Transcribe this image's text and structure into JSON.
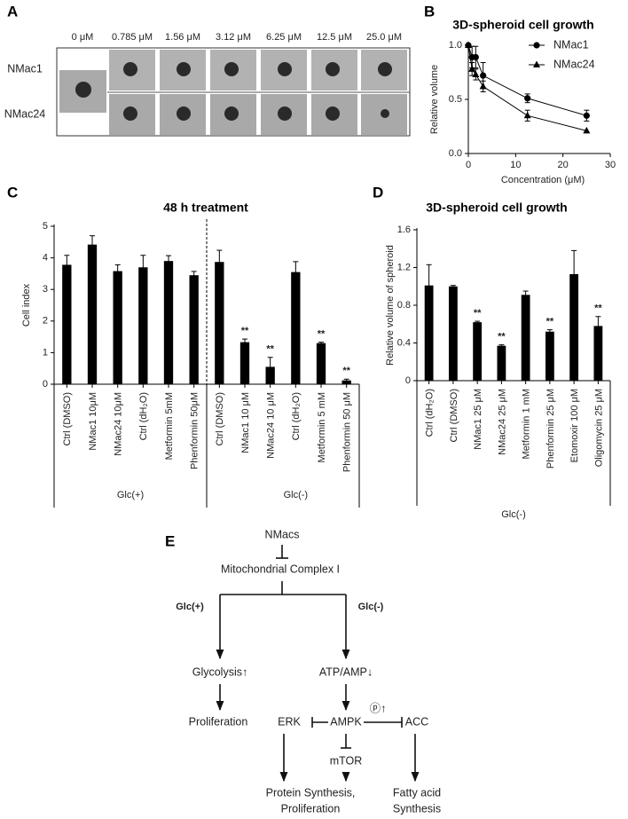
{
  "panel_a": {
    "panel_label": "A",
    "columns": [
      "0 μM",
      "0.785 μM",
      "1.56 μM",
      "3.12 μM",
      "6.25 μM",
      "12.5 μM",
      "25.0 μM"
    ],
    "rows": [
      "NMac1",
      "NMac24"
    ]
  },
  "chart_data": [
    {
      "type": "line",
      "panel_label": "B",
      "title": "3D-spheroid cell growth",
      "x_label": "Concentration (μM)",
      "y_label": "Relative volume",
      "x": [
        0,
        0.785,
        1.56,
        3.12,
        12.5,
        25
      ],
      "series": [
        {
          "name": "NMac1",
          "color": "#000000",
          "marker": "circle",
          "values": [
            1.0,
            0.89,
            0.89,
            0.72,
            0.51,
            0.35
          ],
          "errors": [
            0,
            0.1,
            0.1,
            0.12,
            0.04,
            0.05
          ]
        },
        {
          "name": "NMac24",
          "color": "#000000",
          "marker": "triangle",
          "values": [
            1.0,
            0.78,
            0.73,
            0.62,
            0.35,
            0.21
          ],
          "errors": [
            0,
            0.06,
            0.05,
            0.05,
            0.05,
            0
          ]
        }
      ],
      "xlim": [
        0,
        30
      ],
      "xticks": [
        0,
        10,
        20,
        30
      ],
      "ylim": [
        0,
        1.0
      ],
      "yticks": [
        {
          "value": 0,
          "label": "0.0"
        },
        0.5,
        {
          "value": 1.0,
          "label": "1.0"
        }
      ],
      "legend": "top-right"
    },
    {
      "type": "bar",
      "panel_label": "C",
      "title": "48 h treatment",
      "y_label": "Cell index",
      "categories": [
        "Ctrl (DMSO)",
        "NMac1 10μM",
        "NMac24 10μM",
        "Ctrl (dH₂O)",
        "Metformin 5mM",
        "Phenformin 50μM",
        "Ctrl (DMSO)",
        "NMac1 10 μM",
        "NMac24 10 μM",
        "Ctrl (dH₂O)",
        "Metformin 5 mM",
        "Phenformin 50 μM"
      ],
      "values": [
        3.78,
        4.42,
        3.58,
        3.7,
        3.9,
        3.45,
        3.87,
        1.33,
        0.55,
        3.55,
        1.3,
        0.12
      ],
      "errors": [
        0.3,
        0.28,
        0.2,
        0.38,
        0.17,
        0.12,
        0.37,
        0.1,
        0.3,
        0.33,
        0.03,
        0.04
      ],
      "color": "#000000",
      "annotations": [
        {
          "category": "NMac1 10 μM",
          "text": "**"
        },
        {
          "category": "NMac24 10 μM",
          "text": "**"
        },
        {
          "category": "Metformin 5 mM",
          "text": "**"
        },
        {
          "category": "Phenformin 50 μM",
          "text": "**"
        }
      ],
      "groups": [
        {
          "label": "Glc(+)",
          "from": "NMac1 10μM",
          "to": "Phenformin 50μM"
        },
        {
          "label": "Glc(-)",
          "from": "NMac1 10 μM",
          "to": "Phenformin 50 μM"
        }
      ],
      "ylim": [
        0,
        5
      ],
      "yticks": [
        0,
        1,
        2,
        3,
        4,
        5
      ]
    },
    {
      "type": "bar",
      "panel_label": "D",
      "title": "3D-spheroid cell growth",
      "y_label": "Relative volume of spheroid",
      "categories": [
        "Ctrl (dH₂O)",
        "Ctrl (DMSO)",
        "NMac1 25 μM",
        "NMac24 25 μM",
        "Metformin 1 mM",
        "Phenformin 25 μM",
        "Etomoxir 100 μM",
        "Oligomycin 25 μM"
      ],
      "values": [
        1.01,
        1.0,
        0.62,
        0.37,
        0.91,
        0.52,
        1.13,
        0.58
      ],
      "errors": [
        0.22,
        0.01,
        0.01,
        0.01,
        0.04,
        0.02,
        0.25,
        0.1
      ],
      "color": "#000000",
      "annotations": [
        {
          "category": "NMac1 25 μM",
          "text": "**"
        },
        {
          "category": "NMac24 25 μM",
          "text": "**"
        },
        {
          "category": "Phenformin 25 μM",
          "text": "**"
        },
        {
          "category": "Oligomycin 25 μM",
          "text": "**"
        }
      ],
      "groups": [
        {
          "label": "Glc(-)",
          "from": "Ctrl (dH₂O)",
          "to": "Oligomycin 25 μM"
        }
      ],
      "ylim": [
        0,
        1.6
      ],
      "yticks": [
        0,
        0.4,
        0.8,
        1.2,
        1.6
      ]
    }
  ],
  "panel_e": {
    "panel_label": "E",
    "nodes": [
      {
        "label": "NMacs"
      },
      {
        "label": "Mitochondrial Complex I"
      },
      {
        "label": "Glc(+)"
      },
      {
        "label": "Glc(-)"
      },
      {
        "label": "Glycolysis↑"
      },
      {
        "label": "ATP/AMP↓"
      },
      {
        "label": "Proliferation"
      },
      {
        "label": "ERK"
      },
      {
        "label": "AMPK"
      },
      {
        "label": "ⓟ↑"
      },
      {
        "label": "ACC"
      },
      {
        "label": "mTOR"
      },
      {
        "label": [
          "Protein Synthesis,",
          "Proliferation"
        ]
      },
      {
        "label": [
          "Fatty acid",
          "Synthesis"
        ]
      }
    ]
  }
}
